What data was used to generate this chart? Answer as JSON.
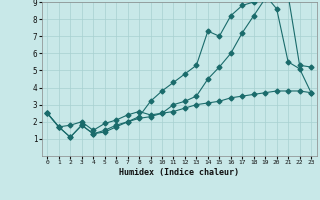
{
  "xlabel": "Humidex (Indice chaleur)",
  "xlim": [
    -0.5,
    23.5
  ],
  "ylim": [
    0,
    9
  ],
  "xticks": [
    0,
    1,
    2,
    3,
    4,
    5,
    6,
    7,
    8,
    9,
    10,
    11,
    12,
    13,
    14,
    15,
    16,
    17,
    18,
    19,
    20,
    21,
    22,
    23
  ],
  "yticks": [
    1,
    2,
    3,
    4,
    5,
    6,
    7,
    8,
    9
  ],
  "bg_color": "#c8e8e8",
  "line_color": "#1a6b6b",
  "grid_color": "#a8d0d0",
  "line1_x": [
    0,
    1,
    2,
    3,
    4,
    5,
    6,
    7,
    8,
    9,
    10,
    11,
    12,
    13,
    14,
    15,
    16,
    17,
    18,
    19,
    20,
    21,
    22,
    23
  ],
  "line1_y": [
    2.5,
    1.7,
    1.1,
    1.8,
    1.3,
    1.4,
    1.7,
    2.0,
    2.3,
    3.2,
    3.8,
    4.3,
    4.8,
    5.3,
    7.3,
    7.0,
    8.2,
    8.8,
    9.0,
    9.4,
    8.6,
    5.5,
    5.1,
    3.7
  ],
  "line2_x": [
    0,
    1,
    2,
    3,
    4,
    5,
    6,
    7,
    8,
    9,
    10,
    11,
    12,
    13,
    14,
    15,
    16,
    17,
    18,
    19,
    20,
    21,
    22,
    23
  ],
  "line2_y": [
    2.5,
    1.7,
    1.8,
    2.0,
    1.5,
    1.9,
    2.1,
    2.4,
    2.6,
    2.4,
    2.5,
    3.0,
    3.2,
    3.5,
    4.5,
    5.2,
    6.0,
    7.2,
    8.2,
    9.2,
    9.3,
    9.4,
    5.3,
    5.2
  ],
  "line3_x": [
    0,
    1,
    2,
    3,
    4,
    5,
    6,
    7,
    8,
    9,
    10,
    11,
    12,
    13,
    14,
    15,
    16,
    17,
    18,
    19,
    20,
    21,
    22,
    23
  ],
  "line3_y": [
    2.5,
    1.7,
    1.1,
    1.8,
    1.3,
    1.5,
    1.8,
    2.0,
    2.2,
    2.3,
    2.5,
    2.6,
    2.8,
    3.0,
    3.1,
    3.2,
    3.4,
    3.5,
    3.6,
    3.7,
    3.8,
    3.8,
    3.8,
    3.7
  ]
}
